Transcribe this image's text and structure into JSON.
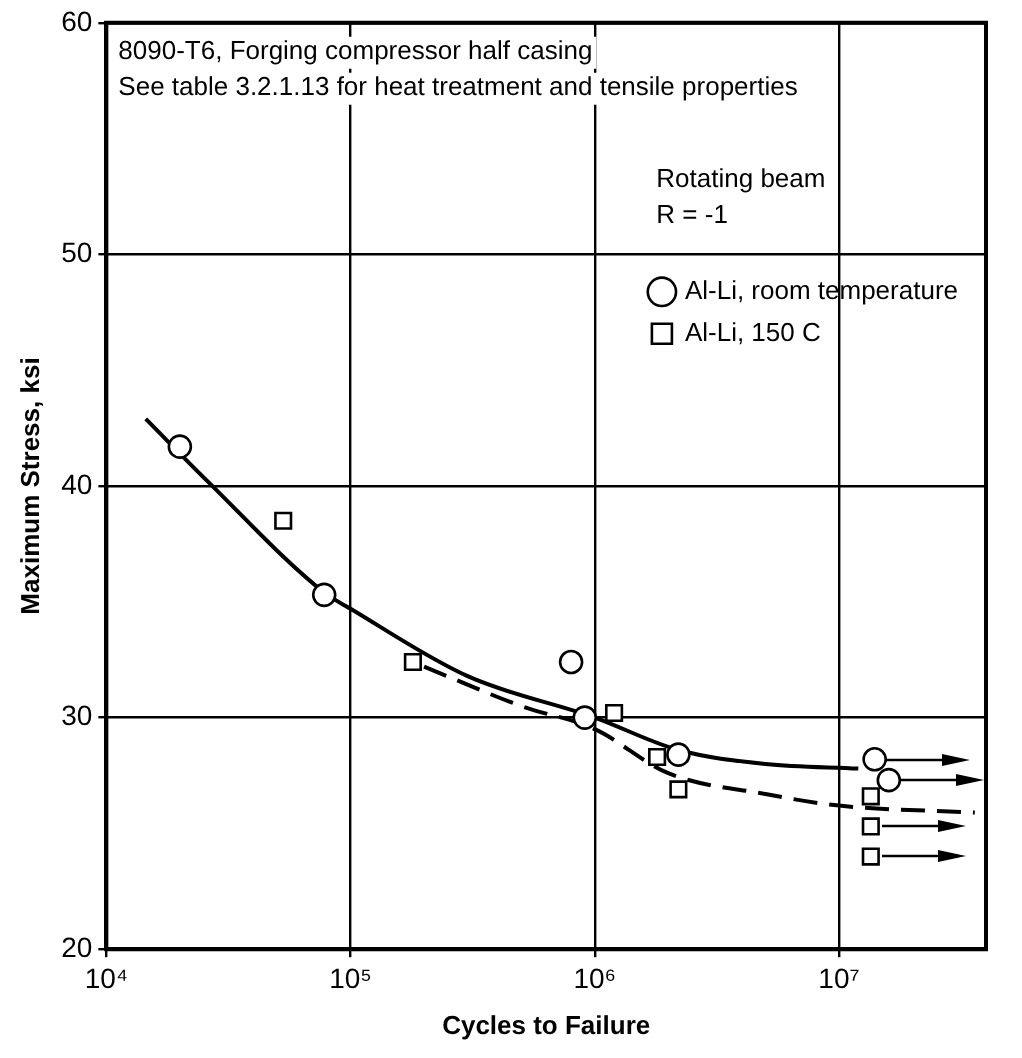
{
  "chart_data": {
    "type": "scatter",
    "xlabel": "Cycles to Failure",
    "ylabel": "Maximum Stress, ksi",
    "log": "x",
    "grid": true,
    "legend": "top right",
    "xlim": [
      10000,
      40000000
    ],
    "xticks": [
      {
        "value": 10000,
        "label": "10⁴"
      },
      {
        "value": 100000,
        "label": "10⁵"
      },
      {
        "value": 1000000,
        "label": "10⁶"
      },
      {
        "value": 10000000,
        "label": "10⁷"
      }
    ],
    "ylim": [
      20,
      60
    ],
    "yticks": [
      20,
      30,
      40,
      50,
      60
    ],
    "annotations": [
      "8090-T6, Forging compressor half casing",
      "See table 3.2.1.13 for heat treatment and tensile properties",
      "Rotating beam",
      "R = -1"
    ],
    "series": [
      {
        "name": "Al-Li, room temperature",
        "type": "scatter",
        "marker": "circle",
        "color": "#000000",
        "x": [
          20000,
          78000,
          800000,
          910000,
          2200000,
          14000000,
          16000000
        ],
        "values": [
          41.7,
          35.3,
          32.4,
          30.0,
          28.4,
          28.2,
          27.3
        ]
      },
      {
        "type": "line",
        "line_style": "solid",
        "marker": "none",
        "color": "#000000",
        "x": [
          14500,
          26000,
          78000,
          100000,
          300000,
          1000000,
          2200000,
          5000000,
          12000000
        ],
        "values": [
          42.9,
          40.2,
          35.4,
          34.7,
          31.8,
          30.0,
          28.6,
          28.0,
          27.8
        ]
      },
      {
        "name": "Al-Li, 150 C",
        "type": "scatter",
        "marker": "square",
        "color": "#000000",
        "x": [
          53000,
          180000,
          1200000,
          1800000,
          2200000,
          13500000,
          13500000,
          13500000
        ],
        "values": [
          38.5,
          32.4,
          30.2,
          28.3,
          26.9,
          26.6,
          25.3,
          24.0
        ]
      },
      {
        "type": "line",
        "line_style": "dashed",
        "marker": "none",
        "color": "#000000",
        "x": [
          200000,
          500000,
          1000000,
          2000000,
          5000000,
          10000000,
          36000000
        ],
        "values": [
          32.2,
          30.5,
          29.5,
          27.6,
          26.7,
          26.2,
          25.9
        ]
      }
    ]
  }
}
